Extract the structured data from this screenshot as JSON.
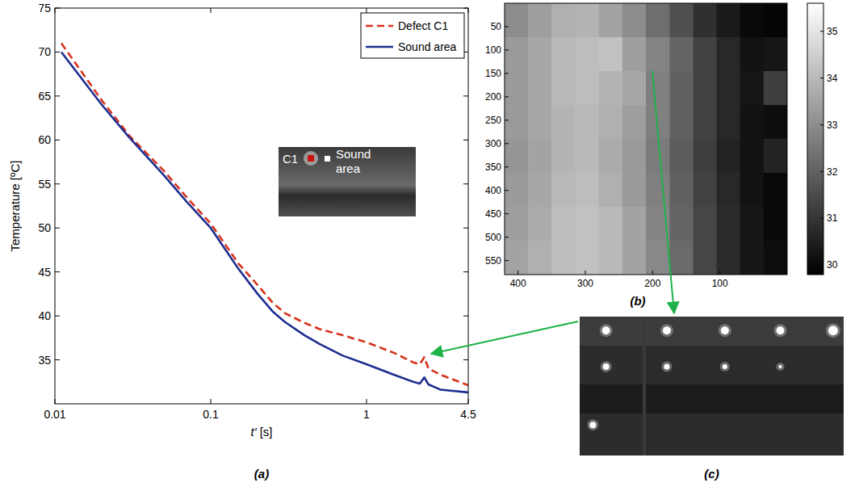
{
  "chart_data": [
    {
      "type": "line",
      "panel": "(a)",
      "x_label": "t' [s]",
      "y_label": "Temperature [ºC]",
      "log": "x",
      "legend": "top-right",
      "grid": false,
      "annotations": [
        "C1",
        "Sound area"
      ],
      "xlim": [
        0.01,
        4.5
      ],
      "xticks": [
        0.01,
        0.1,
        1,
        4.5
      ],
      "ylim": [
        30,
        75
      ],
      "yticks": [
        35,
        40,
        45,
        50,
        55,
        60,
        65,
        70,
        75
      ],
      "x": [
        0.011,
        0.02,
        0.03,
        0.05,
        0.07,
        0.1,
        0.15,
        0.2,
        0.25,
        0.3,
        0.4,
        0.5,
        0.7,
        1,
        1.5,
        2,
        2.2,
        2.35,
        2.5,
        3,
        4.5
      ],
      "series": [
        {
          "name": "Defect C1",
          "color": "#d6321e",
          "line_style": "dashed",
          "values": [
            71,
            64.5,
            60.5,
            56.5,
            53.5,
            50.5,
            46,
            43.5,
            41.5,
            40.3,
            39.2,
            38.5,
            37.8,
            37,
            35.8,
            34.7,
            34.5,
            35.3,
            34,
            33.3,
            32.1
          ]
        },
        {
          "name": "Sound area",
          "color": "#1f2e8f",
          "line_style": "solid",
          "values": [
            70,
            64,
            60.3,
            56,
            53,
            50,
            45.4,
            42.5,
            40.5,
            39.3,
            37.8,
            36.8,
            35.5,
            34.5,
            33.3,
            32.5,
            32.3,
            33,
            32.2,
            31.6,
            31.3
          ]
        }
      ]
    },
    {
      "type": "heatmap",
      "panel": "(b)",
      "xlim": [
        420,
        0
      ],
      "xticks": [
        400,
        300,
        200,
        100
      ],
      "ylim": [
        0,
        580
      ],
      "yticks": [
        50,
        100,
        150,
        200,
        250,
        300,
        350,
        400,
        450,
        500,
        550
      ],
      "cells": [
        [
          33.0,
          33.4,
          33.8,
          33.9,
          33.5,
          33.0,
          32.3,
          31.6,
          30.9,
          30.4,
          30.0,
          29.9
        ],
        [
          33.3,
          33.6,
          34.0,
          34.1,
          34.2,
          33.4,
          32.8,
          32.1,
          31.3,
          30.7,
          30.2,
          30.3
        ],
        [
          33.3,
          33.6,
          34.0,
          34.1,
          33.9,
          33.6,
          32.7,
          32.0,
          31.3,
          30.7,
          30.3,
          31.2
        ],
        [
          33.3,
          33.6,
          33.9,
          34.0,
          33.8,
          33.4,
          32.7,
          32.0,
          31.3,
          30.7,
          30.2,
          30.1
        ],
        [
          33.2,
          33.5,
          33.9,
          34.0,
          33.7,
          33.3,
          32.6,
          31.9,
          31.2,
          30.6,
          30.2,
          30.6
        ],
        [
          33.3,
          33.6,
          34.0,
          34.1,
          33.8,
          33.3,
          32.7,
          32.0,
          31.3,
          30.7,
          30.2,
          30.0
        ],
        [
          33.4,
          33.7,
          34.1,
          34.2,
          34.0,
          33.5,
          32.8,
          32.1,
          31.4,
          30.8,
          30.3,
          30.0
        ],
        [
          33.5,
          33.8,
          34.1,
          34.2,
          34.0,
          33.5,
          32.9,
          32.2,
          31.4,
          30.8,
          30.3,
          30.1
        ]
      ],
      "color_range": [
        29.8,
        35.6
      ],
      "color_ticks": [
        30,
        31,
        32,
        33,
        34,
        35
      ]
    }
  ],
  "image_panel": {
    "panel": "(c)"
  }
}
